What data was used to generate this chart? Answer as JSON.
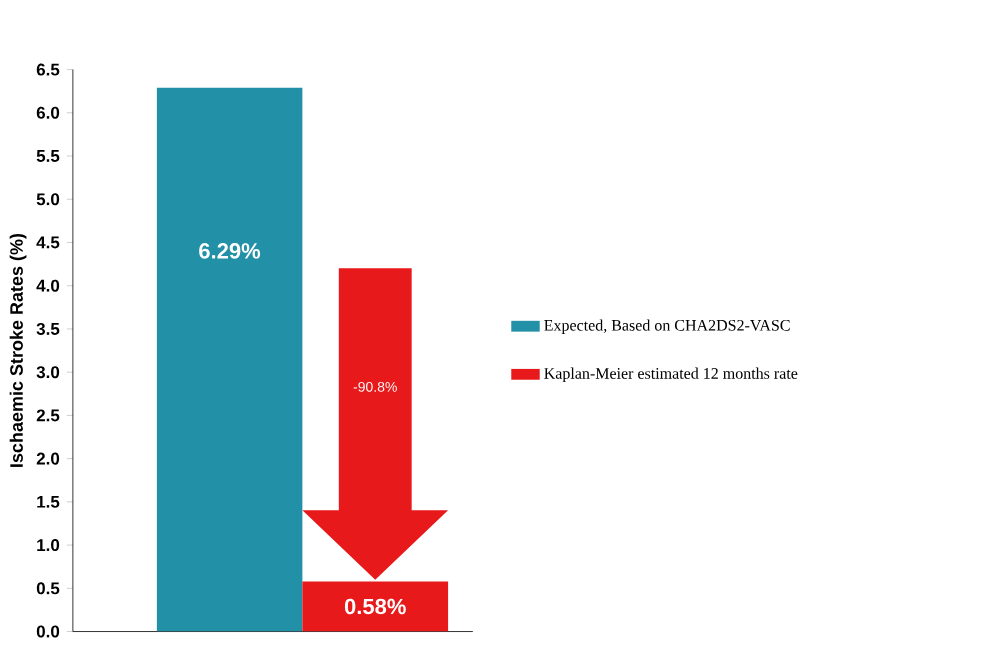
{
  "chart_data": {
    "type": "bar",
    "ylabel": "Ischaemic Stroke Rates (%)",
    "categories": [
      null,
      null
    ],
    "series": [
      {
        "name": "Expected, Based on CHA2DS2-VASC",
        "color": "#2290a6",
        "values": [
          6.29,
          null
        ],
        "value_labels": [
          "6.29%",
          null
        ]
      },
      {
        "name": "Kaplan-Meier estimated 12 months rate",
        "color": "#e8191b",
        "values": [
          null,
          0.58
        ],
        "value_labels": [
          null,
          "0.58%"
        ]
      }
    ],
    "ylim": [
      0,
      6.5
    ],
    "yticks": [
      {
        "value": 0,
        "label": "0.0"
      },
      {
        "value": 0.5,
        "label": "0.5"
      },
      {
        "value": 1,
        "label": "1.0"
      },
      {
        "value": 1.5,
        "label": "1.5"
      },
      {
        "value": 2,
        "label": "2.0"
      },
      {
        "value": 2.5,
        "label": "2.5"
      },
      {
        "value": 3,
        "label": "3.0"
      },
      {
        "value": 3.5,
        "label": "3.5"
      },
      {
        "value": 4,
        "label": "4.0"
      },
      {
        "value": 4.5,
        "label": "4.5"
      },
      {
        "value": 5,
        "label": "5.0"
      },
      {
        "value": 5.5,
        "label": "5.5"
      },
      {
        "value": 6,
        "label": "6.0"
      },
      {
        "value": 6.5,
        "label": "6.5"
      }
    ],
    "annotations": [
      "-90.8%"
    ],
    "legend": "right",
    "grid": false
  }
}
